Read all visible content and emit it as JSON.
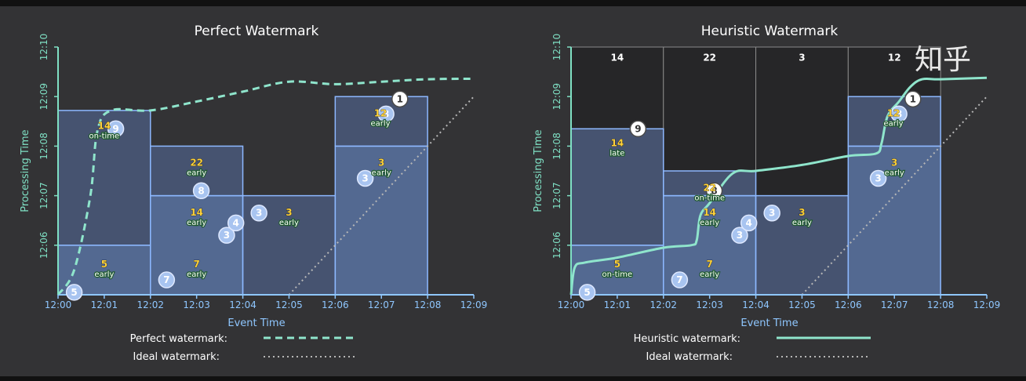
{
  "colors": {
    "background": "#333335",
    "pane_fill": "#4f6a98",
    "pane_stroke": "#8db8ff",
    "x_axis": "#8fc7ff",
    "y_axis": "#7fe0c4",
    "watermark": "#8fe5cc",
    "ideal": "#b7b7b7",
    "value": "#ffd23a",
    "tag_bg": "#1f5a2f"
  },
  "x_ticks": [
    "12:00",
    "12:01",
    "12:02",
    "12:03",
    "12:04",
    "12:05",
    "12:06",
    "12:07",
    "12:08",
    "12:09"
  ],
  "y_ticks": [
    "12:06",
    "12:07",
    "12:08",
    "12:09",
    "12:10"
  ],
  "legend_ideal": "Ideal watermark:",
  "logo_text": "知乎",
  "panels": [
    {
      "title": "Perfect Watermark",
      "xlabel": "Event Time",
      "ylabel": "Processing Time",
      "legend_label": "Perfect watermark:",
      "watermark_style": "dashed",
      "window_totals": [],
      "watermark_points": [
        [
          0,
          5.0
        ],
        [
          0.35,
          5.5
        ],
        [
          0.7,
          7.0
        ],
        [
          0.85,
          8.3
        ],
        [
          1.15,
          8.72
        ],
        [
          2.0,
          8.72
        ],
        [
          3.0,
          8.9
        ],
        [
          4.0,
          9.1
        ],
        [
          5.0,
          9.3
        ],
        [
          6.0,
          9.25
        ],
        [
          7.0,
          9.3
        ],
        [
          8.0,
          9.35
        ],
        [
          9.0,
          9.36
        ]
      ],
      "panes": [
        {
          "x0": 0,
          "x1": 2,
          "y0": 5,
          "y1": 6,
          "shade": "light"
        },
        {
          "x0": 0,
          "x1": 2,
          "y0": 6,
          "y1": 8.72,
          "shade": "dark"
        },
        {
          "x0": 2,
          "x1": 4,
          "y0": 5,
          "y1": 7,
          "shade": "light"
        },
        {
          "x0": 2,
          "x1": 4,
          "y0": 7,
          "y1": 8,
          "shade": "dark"
        },
        {
          "x0": 4,
          "x1": 6,
          "y0": 5,
          "y1": 7,
          "shade": "dark"
        },
        {
          "x0": 6,
          "x1": 8,
          "y0": 5,
          "y1": 8,
          "shade": "light"
        },
        {
          "x0": 6,
          "x1": 8,
          "y0": 8,
          "y1": 9,
          "shade": "dark"
        }
      ],
      "points": [
        {
          "label": "5",
          "x": 0.35,
          "y": 5.05,
          "style": "light"
        },
        {
          "label": "9",
          "x": 1.25,
          "y": 8.35,
          "style": "light"
        },
        {
          "label": "7",
          "x": 2.35,
          "y": 5.3,
          "style": "light"
        },
        {
          "label": "8",
          "x": 3.1,
          "y": 7.1,
          "style": "light"
        },
        {
          "label": "3",
          "x": 3.65,
          "y": 6.2,
          "style": "light"
        },
        {
          "label": "4",
          "x": 3.85,
          "y": 6.45,
          "style": "light"
        },
        {
          "label": "3",
          "x": 4.35,
          "y": 6.65,
          "style": "light"
        },
        {
          "label": "3",
          "x": 6.65,
          "y": 7.35,
          "style": "light"
        },
        {
          "label": "8",
          "x": 7.1,
          "y": 8.65,
          "style": "light"
        },
        {
          "label": "1",
          "x": 7.4,
          "y": 8.95,
          "style": "white"
        }
      ],
      "results": [
        {
          "value": "14",
          "tag": "on-time",
          "x": 1.0,
          "y": 8.35
        },
        {
          "value": "22",
          "tag": "early",
          "x": 3.0,
          "y": 7.6
        },
        {
          "value": "14",
          "tag": "early",
          "x": 3.0,
          "y": 6.6
        },
        {
          "value": "3",
          "tag": "early",
          "x": 5.0,
          "y": 6.6
        },
        {
          "value": "5",
          "tag": "early",
          "x": 1.0,
          "y": 5.55
        },
        {
          "value": "7",
          "tag": "early",
          "x": 3.0,
          "y": 5.55
        },
        {
          "value": "3",
          "tag": "early",
          "x": 7.0,
          "y": 7.6
        },
        {
          "value": "12",
          "tag": "early",
          "x": 6.98,
          "y": 8.6
        }
      ]
    },
    {
      "title": "Heuristic Watermark",
      "xlabel": "Event Time",
      "ylabel": "Processing Time",
      "legend_label": "Heuristic watermark:",
      "watermark_style": "solid",
      "window_totals": [
        "14",
        "22",
        "3",
        "12"
      ],
      "watermark_points": [
        [
          0,
          5.0
        ],
        [
          0.08,
          5.55
        ],
        [
          0.3,
          5.65
        ],
        [
          1.0,
          5.75
        ],
        [
          2.0,
          5.95
        ],
        [
          2.6,
          6.0
        ],
        [
          2.72,
          6.1
        ],
        [
          2.8,
          6.6
        ],
        [
          3.0,
          6.85
        ],
        [
          3.5,
          7.45
        ],
        [
          4.0,
          7.5
        ],
        [
          5.0,
          7.62
        ],
        [
          6.0,
          7.8
        ],
        [
          6.6,
          7.85
        ],
        [
          6.72,
          8.05
        ],
        [
          6.85,
          8.6
        ],
        [
          7.1,
          8.9
        ],
        [
          7.35,
          9.2
        ],
        [
          7.6,
          9.35
        ],
        [
          8.0,
          9.35
        ],
        [
          9.0,
          9.38
        ]
      ],
      "panes": [
        {
          "x0": 0,
          "x1": 2,
          "y0": 5,
          "y1": 6,
          "shade": "light"
        },
        {
          "x0": 0,
          "x1": 2,
          "y0": 6,
          "y1": 8.35,
          "shade": "dark"
        },
        {
          "x0": 2,
          "x1": 4,
          "y0": 5,
          "y1": 7,
          "shade": "light"
        },
        {
          "x0": 2,
          "x1": 4,
          "y0": 7,
          "y1": 7.5,
          "shade": "dark"
        },
        {
          "x0": 4,
          "x1": 6,
          "y0": 5,
          "y1": 7,
          "shade": "dark"
        },
        {
          "x0": 6,
          "x1": 8,
          "y0": 5,
          "y1": 8,
          "shade": "light"
        },
        {
          "x0": 6,
          "x1": 8,
          "y0": 8,
          "y1": 9,
          "shade": "dark"
        }
      ],
      "points": [
        {
          "label": "5",
          "x": 0.35,
          "y": 5.05,
          "style": "light"
        },
        {
          "label": "9",
          "x": 1.45,
          "y": 8.35,
          "style": "white"
        },
        {
          "label": "7",
          "x": 2.35,
          "y": 5.3,
          "style": "light"
        },
        {
          "label": "8",
          "x": 3.1,
          "y": 7.1,
          "style": "white"
        },
        {
          "label": "3",
          "x": 3.65,
          "y": 6.2,
          "style": "light"
        },
        {
          "label": "4",
          "x": 3.85,
          "y": 6.45,
          "style": "light"
        },
        {
          "label": "3",
          "x": 4.35,
          "y": 6.65,
          "style": "light"
        },
        {
          "label": "3",
          "x": 6.65,
          "y": 7.35,
          "style": "light"
        },
        {
          "label": "8",
          "x": 7.1,
          "y": 8.65,
          "style": "light"
        },
        {
          "label": "1",
          "x": 7.4,
          "y": 8.95,
          "style": "white"
        }
      ],
      "results": [
        {
          "value": "14",
          "tag": "late",
          "x": 1.0,
          "y": 8.0
        },
        {
          "value": "22",
          "tag": "on-time",
          "x": 3.0,
          "y": 7.1
        },
        {
          "value": "14",
          "tag": "early",
          "x": 3.0,
          "y": 6.6
        },
        {
          "value": "3",
          "tag": "early",
          "x": 5.0,
          "y": 6.6
        },
        {
          "value": "5",
          "tag": "on-time",
          "x": 1.0,
          "y": 5.55
        },
        {
          "value": "7",
          "tag": "early",
          "x": 3.0,
          "y": 5.55
        },
        {
          "value": "3",
          "tag": "early",
          "x": 7.0,
          "y": 7.6
        },
        {
          "value": "12",
          "tag": "early",
          "x": 6.98,
          "y": 8.6
        }
      ]
    }
  ]
}
